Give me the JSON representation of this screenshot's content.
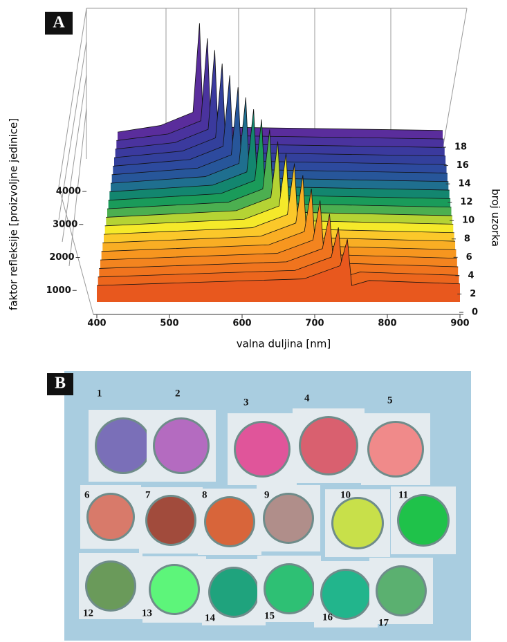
{
  "chart_data": {
    "type": "waterfall",
    "label": "A",
    "xlabel": "valna duljina [nm]",
    "ylabel": "faktor refleksije [proizvoljne jedinice]",
    "zlabel": "broj uzorka",
    "xlim": [
      400,
      900
    ],
    "xticks": [
      400,
      500,
      600,
      700,
      800,
      900
    ],
    "ylim": [
      0,
      4000
    ],
    "yticks": [
      1000,
      2000,
      3000,
      4000
    ],
    "zlim": [
      0,
      18
    ],
    "zticks": [
      0,
      2,
      4,
      6,
      8,
      10,
      12,
      14,
      16,
      18
    ],
    "series": [
      {
        "z": 0,
        "color": "#e8581e",
        "x": [
          400,
          685,
          735,
          745,
          751,
          775,
          900
        ],
        "values": [
          500,
          700,
          1100,
          1900,
          500,
          650,
          550
        ]
      },
      {
        "z": 1,
        "color": "#ec661d",
        "x": [
          400,
          673,
          723,
          733,
          739,
          763,
          900
        ],
        "values": [
          500,
          700,
          1100,
          2000,
          500,
          650,
          550
        ]
      },
      {
        "z": 2,
        "color": "#f0741e",
        "x": [
          400,
          661,
          711,
          721,
          727,
          751,
          900
        ],
        "values": [
          500,
          700,
          1100,
          2150,
          500,
          650,
          550
        ]
      },
      {
        "z": 3,
        "color": "#f3841f",
        "x": [
          400,
          648,
          698,
          708,
          714,
          738,
          900
        ],
        "values": [
          500,
          700,
          1100,
          2300,
          500,
          650,
          550
        ]
      },
      {
        "z": 4,
        "color": "#f7961f",
        "x": [
          400,
          636,
          686,
          696,
          702,
          726,
          900
        ],
        "values": [
          500,
          700,
          1100,
          2400,
          500,
          650,
          550
        ]
      },
      {
        "z": 5,
        "color": "#f9ae24",
        "x": [
          400,
          624,
          674,
          684,
          690,
          714,
          900
        ],
        "values": [
          500,
          700,
          1100,
          2550,
          500,
          650,
          550
        ]
      },
      {
        "z": 6,
        "color": "#fbc82a",
        "x": [
          400,
          612,
          662,
          672,
          678,
          702,
          900
        ],
        "values": [
          500,
          700,
          1100,
          2650,
          500,
          650,
          550
        ]
      },
      {
        "z": 7,
        "color": "#f5e92a",
        "x": [
          400,
          600,
          650,
          660,
          666,
          690,
          900
        ],
        "values": [
          500,
          700,
          1100,
          2700,
          500,
          650,
          550
        ]
      },
      {
        "z": 8,
        "color": "#b5d334",
        "x": [
          400,
          588,
          638,
          648,
          654,
          678,
          900
        ],
        "values": [
          500,
          700,
          1100,
          2800,
          500,
          650,
          550
        ]
      },
      {
        "z": 9,
        "color": "#4caf50",
        "x": [
          400,
          576,
          626,
          636,
          642,
          666,
          900
        ],
        "values": [
          500,
          700,
          1100,
          2900,
          500,
          650,
          550
        ]
      },
      {
        "z": 10,
        "color": "#1a9b5a",
        "x": [
          400,
          564,
          614,
          624,
          630,
          654,
          900
        ],
        "values": [
          500,
          700,
          1100,
          2950,
          500,
          650,
          550
        ]
      },
      {
        "z": 11,
        "color": "#13866f",
        "x": [
          400,
          552,
          602,
          612,
          618,
          642,
          900
        ],
        "values": [
          500,
          700,
          1100,
          3000,
          500,
          650,
          550
        ]
      },
      {
        "z": 12,
        "color": "#1f6f8f",
        "x": [
          400,
          540,
          590,
          600,
          606,
          630,
          900
        ],
        "values": [
          500,
          700,
          1100,
          3100,
          500,
          650,
          550
        ]
      },
      {
        "z": 13,
        "color": "#27569a",
        "x": [
          400,
          528,
          578,
          588,
          594,
          618,
          900
        ],
        "values": [
          500,
          700,
          1100,
          3150,
          500,
          650,
          550
        ]
      },
      {
        "z": 14,
        "color": "#2d4a9e",
        "x": [
          400,
          515,
          565,
          575,
          581,
          605,
          900
        ],
        "values": [
          500,
          700,
          1100,
          3250,
          500,
          650,
          550
        ]
      },
      {
        "z": 15,
        "color": "#33409c",
        "x": [
          400,
          503,
          553,
          563,
          569,
          593,
          900
        ],
        "values": [
          500,
          700,
          1100,
          3350,
          500,
          650,
          550
        ]
      },
      {
        "z": 16,
        "color": "#3b3a9e",
        "x": [
          400,
          491,
          541,
          551,
          557,
          581,
          900
        ],
        "values": [
          500,
          700,
          1100,
          3500,
          500,
          650,
          550
        ]
      },
      {
        "z": 17,
        "color": "#4a339e",
        "x": [
          400,
          479,
          529,
          539,
          545,
          569,
          900
        ],
        "values": [
          500,
          700,
          1100,
          3600,
          500,
          650,
          550
        ]
      },
      {
        "z": 18,
        "color": "#5a2d9c",
        "x": [
          400,
          466,
          516,
          526,
          532,
          556,
          900
        ],
        "values": [
          500,
          700,
          1100,
          3800,
          500,
          650,
          550
        ]
      }
    ]
  },
  "photo": {
    "label": "B",
    "samples": [
      "1",
      "2",
      "3",
      "4",
      "5",
      "6",
      "7",
      "8",
      "9",
      "10",
      "11",
      "12",
      "13",
      "14",
      "15",
      "16",
      "17"
    ]
  }
}
